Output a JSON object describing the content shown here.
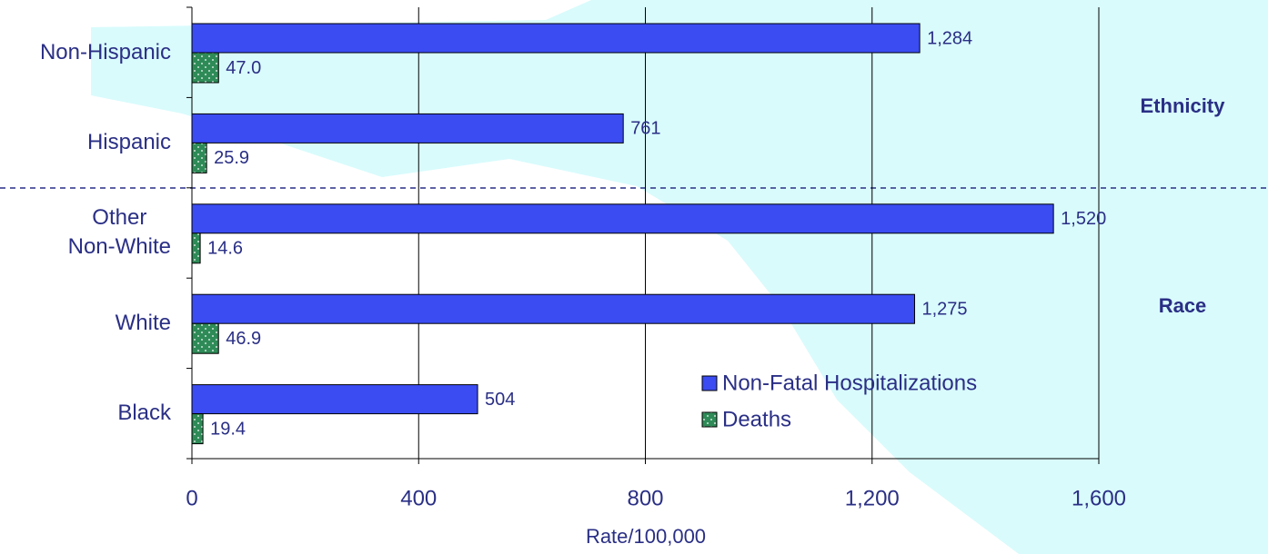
{
  "chart_data": {
    "type": "barh",
    "categories": [
      "Non-Hispanic",
      "Hispanic",
      "Other\nNon-White",
      "White",
      "Black"
    ],
    "series": [
      {
        "name": "Non-Fatal Hospitalizations",
        "color": "#3a4cf2",
        "values": [
          1284,
          761,
          1520,
          1275,
          504
        ],
        "value_labels": [
          "1,284",
          "761",
          "1,520",
          "1,275",
          "504"
        ]
      },
      {
        "name": "Deaths",
        "color": "#2e8b57",
        "pattern": "dots",
        "values": [
          47.0,
          25.9,
          14.6,
          46.9,
          19.4
        ],
        "value_labels": [
          "47.0",
          "25.9",
          "14.6",
          "46.9",
          "19.4"
        ]
      }
    ],
    "xlim": [
      0,
      1600
    ],
    "xticks": [
      0,
      400,
      800,
      {
        "value": 1200,
        "label": "1,200"
      },
      {
        "value": 1600,
        "label": "1,600"
      }
    ],
    "xlabel": "Rate/100,000",
    "grid": true,
    "legend": "lower right",
    "annotations": [
      "Ethnicity",
      "Race"
    ]
  }
}
